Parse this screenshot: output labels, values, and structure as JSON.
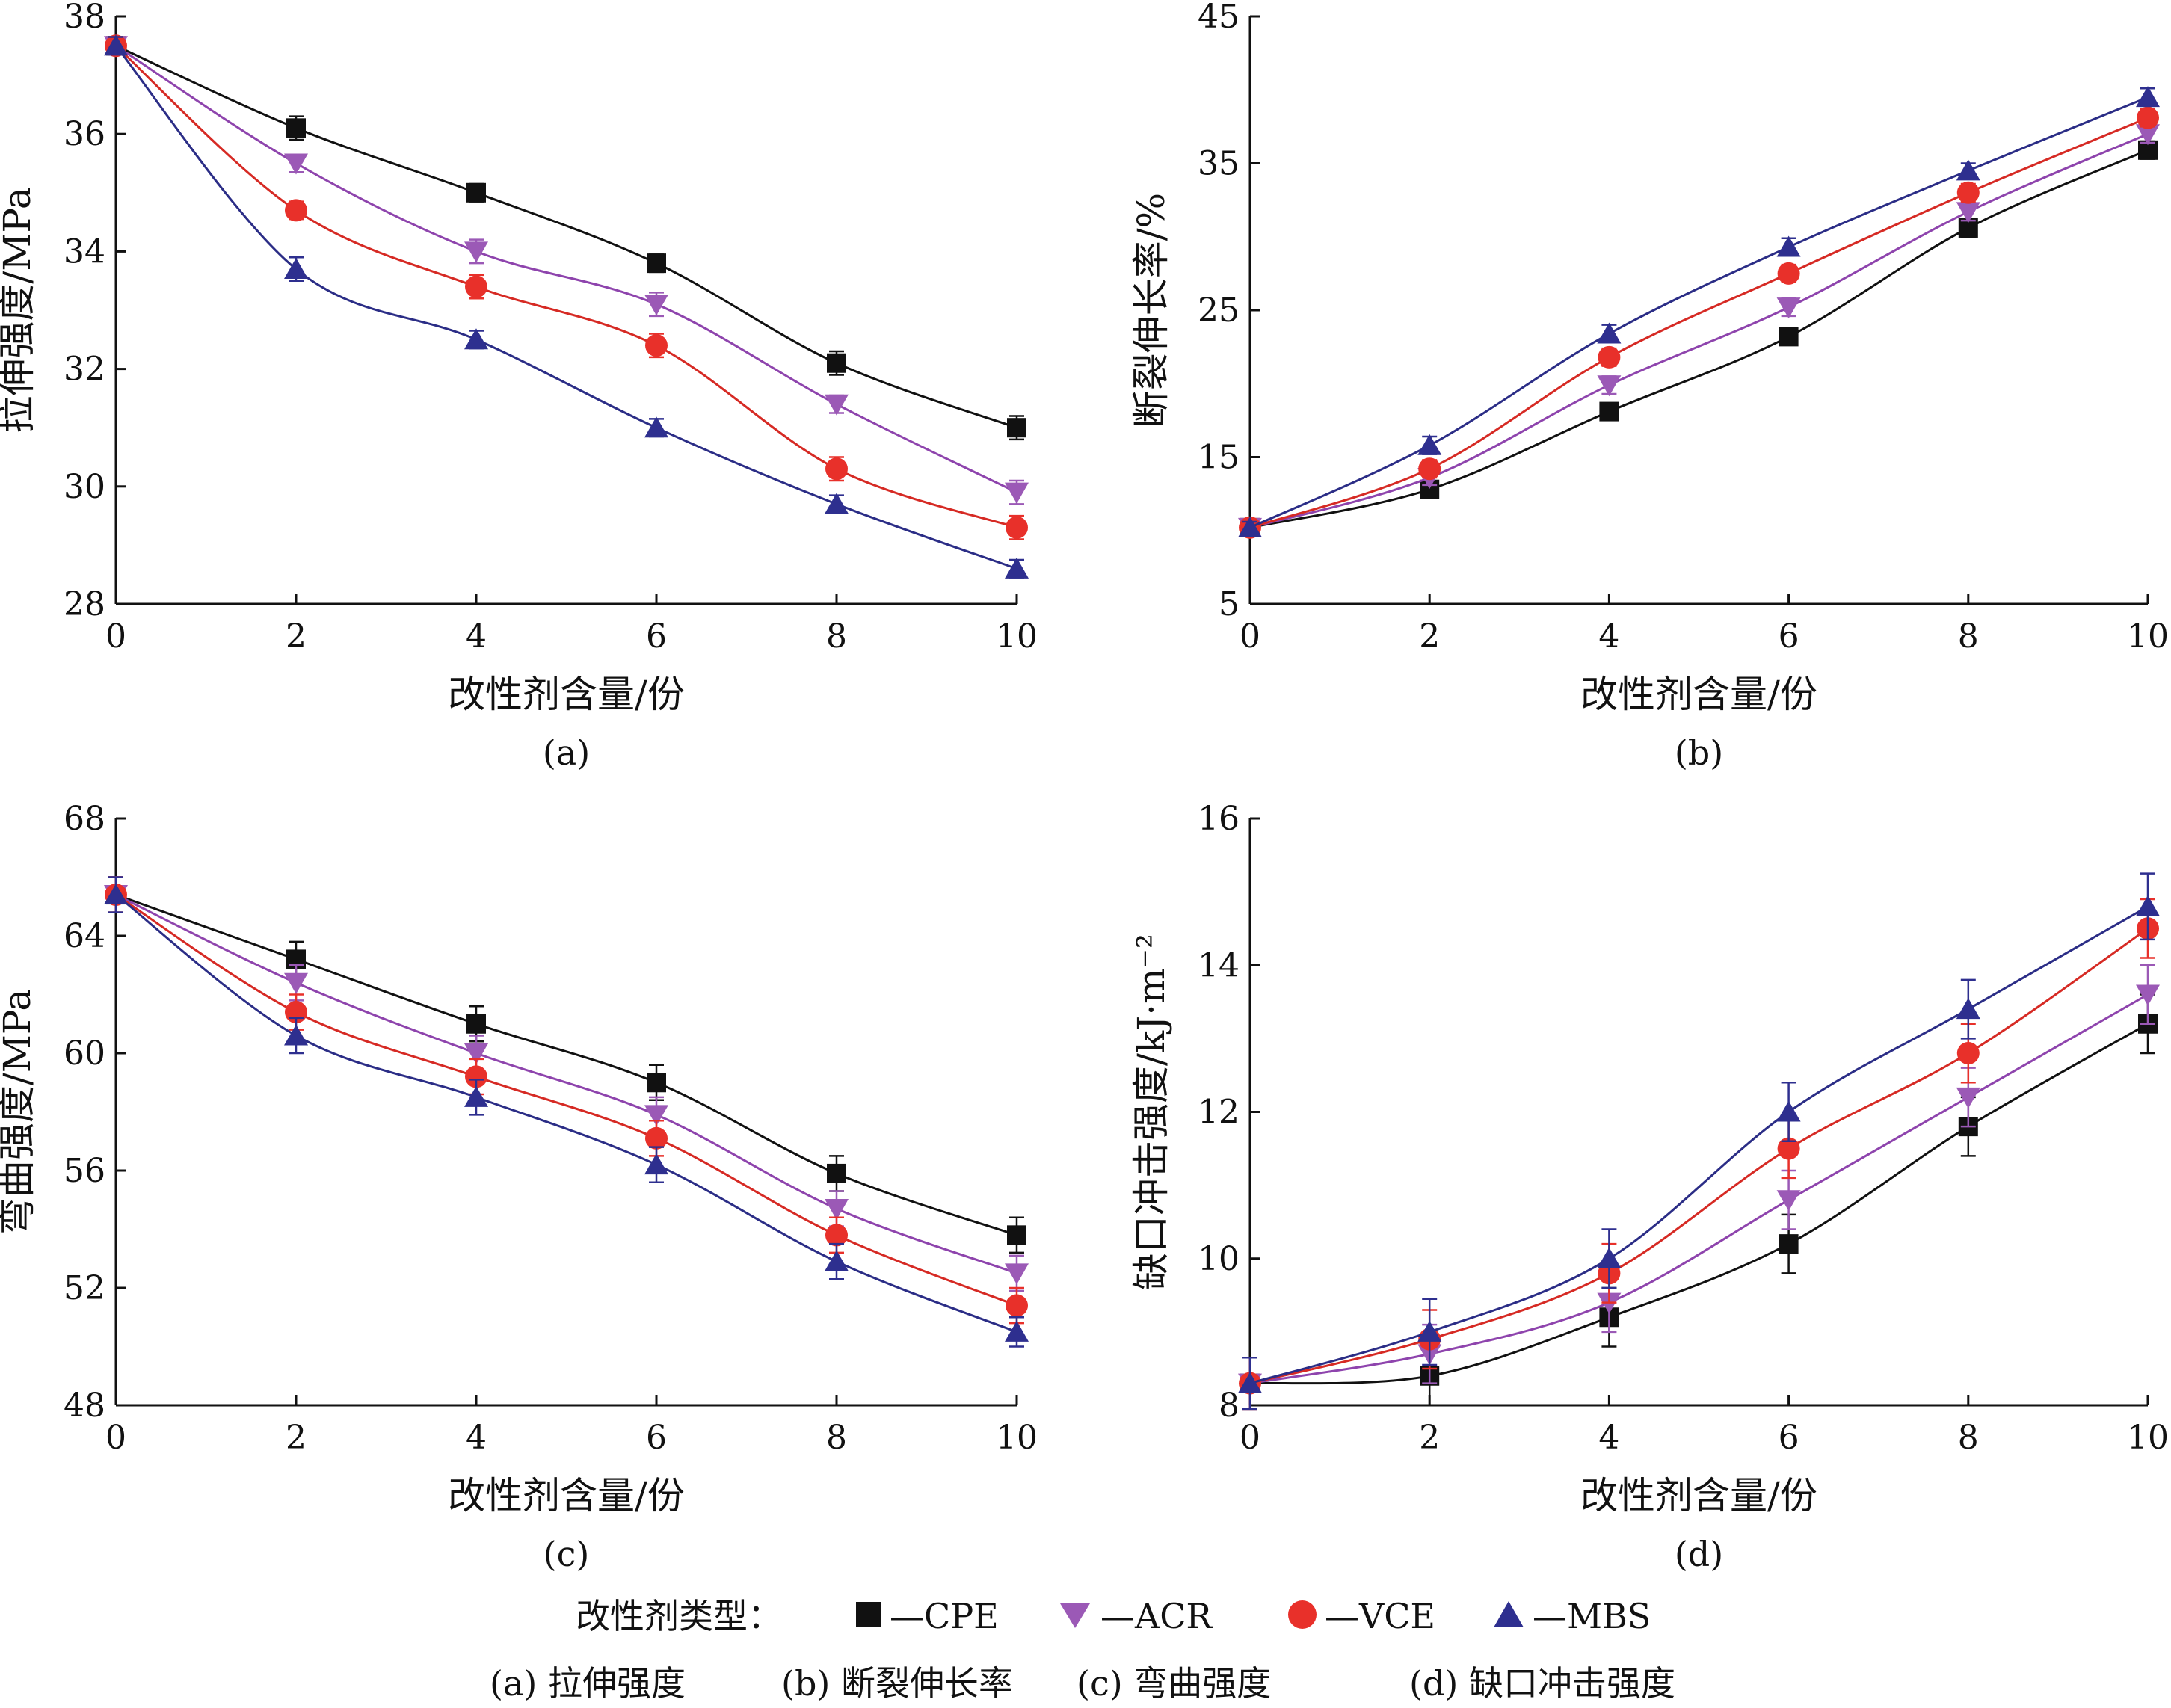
{
  "legend": {
    "title": "改性剂类型：",
    "entries": [
      "—CPE",
      "—ACR",
      "—VCE",
      "—MBS"
    ]
  },
  "caption": {
    "a": "(a) 拉伸强度",
    "b": "(b) 断裂伸长率",
    "c": "(c) 弯曲强度",
    "d": "(d) 缺口冲击强度"
  },
  "series_styles": [
    {
      "name": "CPE",
      "marker": "square",
      "color": "#111111",
      "line_color": "#111111"
    },
    {
      "name": "ACR",
      "marker": "triangle-down",
      "color": "#9b59b6",
      "line_color": "#8e44ad"
    },
    {
      "name": "VCE",
      "marker": "circle",
      "color": "#e8302a",
      "line_color": "#d62a24"
    },
    {
      "name": "MBS",
      "marker": "triangle-up",
      "color": "#2e2f8f",
      "line_color": "#2b2d86"
    }
  ],
  "chart_data": [
    {
      "type": "line",
      "panel_label": "(a)",
      "xlabel": "改性剂含量/份",
      "ylabel": "拉伸强度/MPa",
      "xlim": [
        0,
        10
      ],
      "ylim": [
        28,
        38
      ],
      "x_ticks": [
        0,
        2,
        4,
        6,
        8,
        10
      ],
      "y_ticks": [
        28,
        30,
        32,
        34,
        36,
        38
      ],
      "x": [
        0,
        2,
        4,
        6,
        8,
        10
      ],
      "series": [
        {
          "name": "CPE",
          "values": [
            37.5,
            36.1,
            35.0,
            33.8,
            32.1,
            31.0
          ],
          "errors": [
            0.15,
            0.2,
            0.15,
            0.15,
            0.2,
            0.2
          ]
        },
        {
          "name": "ACR",
          "values": [
            37.5,
            35.5,
            34.0,
            33.1,
            31.4,
            29.9
          ],
          "errors": [
            0.15,
            0.15,
            0.2,
            0.2,
            0.15,
            0.2
          ]
        },
        {
          "name": "VCE",
          "values": [
            37.5,
            34.7,
            33.4,
            32.4,
            30.3,
            29.3
          ],
          "errors": [
            0.15,
            0.15,
            0.2,
            0.2,
            0.2,
            0.2
          ]
        },
        {
          "name": "MBS",
          "values": [
            37.5,
            33.7,
            32.5,
            31.0,
            29.7,
            28.6
          ],
          "errors": [
            0.15,
            0.2,
            0.15,
            0.15,
            0.15,
            0.15
          ]
        }
      ]
    },
    {
      "type": "line",
      "panel_label": "(b)",
      "xlabel": "改性剂含量/份",
      "ylabel": "断裂伸长率/%",
      "xlim": [
        0,
        10
      ],
      "ylim": [
        5,
        45
      ],
      "x_ticks": [
        0,
        2,
        4,
        6,
        8,
        10
      ],
      "y_ticks": [
        5,
        15,
        25,
        35,
        45
      ],
      "x": [
        0,
        2,
        4,
        6,
        8,
        10
      ],
      "series": [
        {
          "name": "CPE",
          "values": [
            10.2,
            12.8,
            18.1,
            23.2,
            30.6,
            35.9
          ],
          "errors": [
            0.4,
            0.5,
            0.5,
            0.5,
            0.6,
            0.6
          ]
        },
        {
          "name": "ACR",
          "values": [
            10.2,
            13.6,
            19.9,
            25.2,
            31.7,
            37.0
          ],
          "errors": [
            0.4,
            0.5,
            0.6,
            0.6,
            0.6,
            0.6
          ]
        },
        {
          "name": "VCE",
          "values": [
            10.2,
            14.2,
            21.8,
            27.5,
            33.0,
            38.1
          ],
          "errors": [
            0.4,
            0.6,
            0.6,
            0.6,
            0.6,
            0.6
          ]
        },
        {
          "name": "MBS",
          "values": [
            10.2,
            15.8,
            23.4,
            29.3,
            34.5,
            39.5
          ],
          "errors": [
            0.4,
            0.6,
            0.6,
            0.6,
            0.5,
            0.6
          ]
        }
      ]
    },
    {
      "type": "line",
      "panel_label": "(c)",
      "xlabel": "改性剂含量/份",
      "ylabel": "弯曲强度/MPa",
      "xlim": [
        0,
        10
      ],
      "ylim": [
        48,
        68
      ],
      "x_ticks": [
        0,
        2,
        4,
        6,
        8,
        10
      ],
      "y_ticks": [
        48,
        52,
        56,
        60,
        64,
        68
      ],
      "x": [
        0,
        2,
        4,
        6,
        8,
        10
      ],
      "series": [
        {
          "name": "CPE",
          "values": [
            65.4,
            63.2,
            61.0,
            59.0,
            55.9,
            53.8
          ],
          "errors": [
            0.6,
            0.6,
            0.6,
            0.6,
            0.6,
            0.6
          ]
        },
        {
          "name": "ACR",
          "values": [
            65.4,
            62.4,
            60.0,
            57.9,
            54.7,
            52.5
          ],
          "errors": [
            0.6,
            0.6,
            0.6,
            0.6,
            0.6,
            0.6
          ]
        },
        {
          "name": "VCE",
          "values": [
            65.4,
            61.4,
            59.2,
            57.1,
            53.8,
            51.4
          ],
          "errors": [
            0.6,
            0.6,
            0.6,
            0.6,
            0.6,
            0.6
          ]
        },
        {
          "name": "MBS",
          "values": [
            65.4,
            60.6,
            58.5,
            56.2,
            52.9,
            50.5
          ],
          "errors": [
            0.6,
            0.6,
            0.6,
            0.6,
            0.6,
            0.5
          ]
        }
      ]
    },
    {
      "type": "line",
      "panel_label": "(d)",
      "xlabel": "改性剂含量/份",
      "ylabel": "缺口冲击强度/kJ·m⁻²",
      "xlim": [
        0,
        10
      ],
      "ylim": [
        8,
        16
      ],
      "x_ticks": [
        0,
        2,
        4,
        6,
        8,
        10
      ],
      "y_ticks": [
        8,
        10,
        12,
        14,
        16
      ],
      "x": [
        0,
        2,
        4,
        6,
        8,
        10
      ],
      "series": [
        {
          "name": "CPE",
          "values": [
            8.3,
            8.4,
            9.2,
            10.2,
            11.8,
            13.2
          ],
          "errors": [
            0.35,
            0.4,
            0.4,
            0.4,
            0.4,
            0.4
          ]
        },
        {
          "name": "ACR",
          "values": [
            8.3,
            8.7,
            9.4,
            10.8,
            12.2,
            13.6
          ],
          "errors": [
            0.35,
            0.4,
            0.4,
            0.4,
            0.4,
            0.4
          ]
        },
        {
          "name": "VCE",
          "values": [
            8.3,
            8.9,
            9.8,
            11.5,
            12.8,
            14.5
          ],
          "errors": [
            0.35,
            0.4,
            0.4,
            0.4,
            0.4,
            0.4
          ]
        },
        {
          "name": "MBS",
          "values": [
            8.3,
            9.0,
            10.0,
            12.0,
            13.4,
            14.8
          ],
          "errors": [
            0.35,
            0.45,
            0.4,
            0.4,
            0.4,
            0.45
          ]
        }
      ]
    }
  ]
}
